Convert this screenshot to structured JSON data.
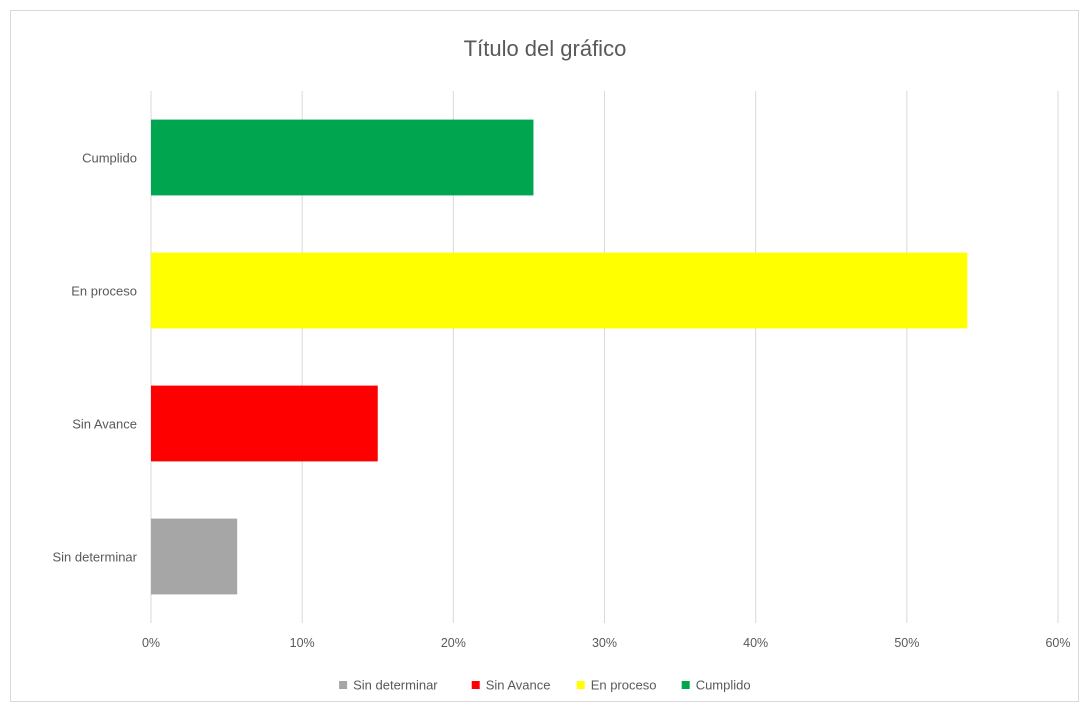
{
  "chart_data": {
    "type": "bar",
    "orientation": "horizontal",
    "title": "Título del gráfico",
    "categories": [
      "Cumplido",
      "En proceso",
      "Sin Avance",
      "Sin determinar"
    ],
    "values": [
      0.253,
      0.54,
      0.15,
      0.057
    ],
    "colors": [
      "#00A550",
      "#FFFF00",
      "#FF0000",
      "#A6A6A6"
    ],
    "xlim": [
      0,
      0.6
    ],
    "x_ticks": [
      0,
      0.1,
      0.2,
      0.3,
      0.4,
      0.5,
      0.6
    ],
    "x_tick_labels": [
      "0%",
      "10%",
      "20%",
      "30%",
      "40%",
      "50%",
      "60%"
    ],
    "xlabel": "",
    "ylabel": "",
    "grid": "vertical",
    "legend_position": "bottom",
    "legend": [
      {
        "label": "Sin determinar",
        "color": "#A6A6A6"
      },
      {
        "label": "Sin Avance",
        "color": "#FF0000"
      },
      {
        "label": "En proceso",
        "color": "#FFFF00"
      },
      {
        "label": "Cumplido",
        "color": "#00A550"
      }
    ]
  }
}
